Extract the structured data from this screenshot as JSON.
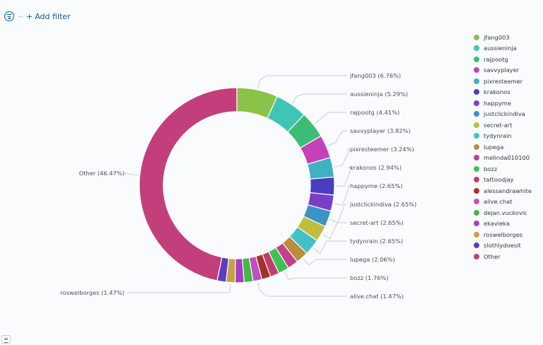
{
  "filter_bar": {
    "add_filter_label": "Add filter",
    "plus": "+",
    "icon": "filter-icon"
  },
  "chart_data": {
    "type": "pie",
    "donut": true,
    "title": "",
    "legend_position": "right",
    "slices": [
      {
        "name": "jfang003",
        "value": 6.76,
        "label": "jfang003 (6.76%)",
        "color": "#8bc24a"
      },
      {
        "name": "aussieninja",
        "value": 5.29,
        "label": "aussieninja (5.29%)",
        "color": "#3ec5b5"
      },
      {
        "name": "rajpootg",
        "value": 4.41,
        "label": "rajpootg (4.41%)",
        "color": "#3cbd73"
      },
      {
        "name": "savvyplayer",
        "value": 3.82,
        "label": "savvyplayer (3.82%)",
        "color": "#c541b9"
      },
      {
        "name": "pixresteemer",
        "value": 3.24,
        "label": "pixresteemer (3.24%)",
        "color": "#3fb1c0"
      },
      {
        "name": "krakonos",
        "value": 2.94,
        "label": "krakonos (2.94%)",
        "color": "#4a3ec0"
      },
      {
        "name": "happyme",
        "value": 2.65,
        "label": "happyme (2.65%)",
        "color": "#7a3fc9"
      },
      {
        "name": "justclickindiva",
        "value": 2.65,
        "label": "justclickindiva (2.65%)",
        "color": "#3b93c6"
      },
      {
        "name": "secret-art",
        "value": 2.65,
        "label": "secret-art (2.65%)",
        "color": "#c2bc3e"
      },
      {
        "name": "tydynrain",
        "value": 2.65,
        "label": "tydynrain (2.65%)",
        "color": "#42c2c8"
      },
      {
        "name": "lupega",
        "value": 2.06,
        "label": "lupega (2.06%)",
        "color": "#bc8d3c"
      },
      {
        "name": "melinda010100",
        "value": 1.76,
        "label": "",
        "color": "#c2418f"
      },
      {
        "name": "bozz",
        "value": 1.76,
        "label": "bozz (1.76%)",
        "color": "#3ec253"
      },
      {
        "name": "tattoodjay",
        "value": 1.47,
        "label": "",
        "color": "#c23e6a"
      },
      {
        "name": "alessandrawhite",
        "value": 1.47,
        "label": "",
        "color": "#a6312c"
      },
      {
        "name": "alive.chat",
        "value": 1.47,
        "label": "alive.chat (1.47%)",
        "color": "#c14fc3"
      },
      {
        "name": "dejan.vuckovic",
        "value": 1.47,
        "label": "",
        "color": "#44b944"
      },
      {
        "name": "ekavieka",
        "value": 1.47,
        "label": "",
        "color": "#a83ec2"
      },
      {
        "name": "roswelborges",
        "value": 1.47,
        "label": "roswelborges (1.47%)",
        "color": "#c3a444"
      },
      {
        "name": "slothlydoesit",
        "value": 1.47,
        "label": "",
        "color": "#5b3ec0"
      },
      {
        "name": "Other",
        "value": 46.47,
        "label": "Other (46.47%)",
        "color": "#c23f7c"
      }
    ]
  }
}
